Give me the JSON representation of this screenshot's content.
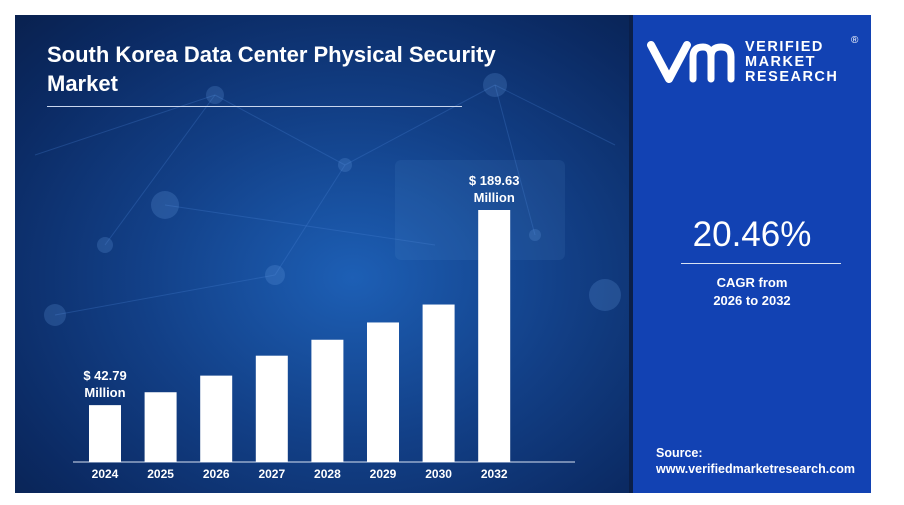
{
  "chart_data": {
    "type": "bar",
    "title": "South Korea Data Center Physical Security Market",
    "categories": [
      "2024",
      "2025",
      "2026",
      "2027",
      "2028",
      "2029",
      "2030",
      "2032"
    ],
    "values": [
      42.79,
      52.5,
      65.0,
      80.0,
      92.0,
      105.0,
      118.5,
      189.63
    ],
    "data_labels": [
      {
        "index": 0,
        "lines": [
          "$ 42.79",
          "Million"
        ]
      },
      {
        "index": 7,
        "lines": [
          "$ 189.63",
          "Million"
        ]
      }
    ],
    "ylim": [
      0,
      210
    ],
    "grid": false,
    "legend": "none"
  },
  "sidebar": {
    "logo": {
      "name": "vmr-logo-icon",
      "lines": [
        "VERIFIED",
        "MARKET",
        "RESEARCH"
      ],
      "registered": "®"
    },
    "cagr": {
      "value": "20.46%",
      "label_line1": "CAGR from",
      "label_line2": "2026 to 2032"
    },
    "source": {
      "label": "Source:",
      "url": "www.verifiedmarketresearch.com"
    }
  },
  "colors": {
    "panel_blue": "#1242b3",
    "background_dark": "#0b2a63",
    "bar": "#ffffff"
  }
}
